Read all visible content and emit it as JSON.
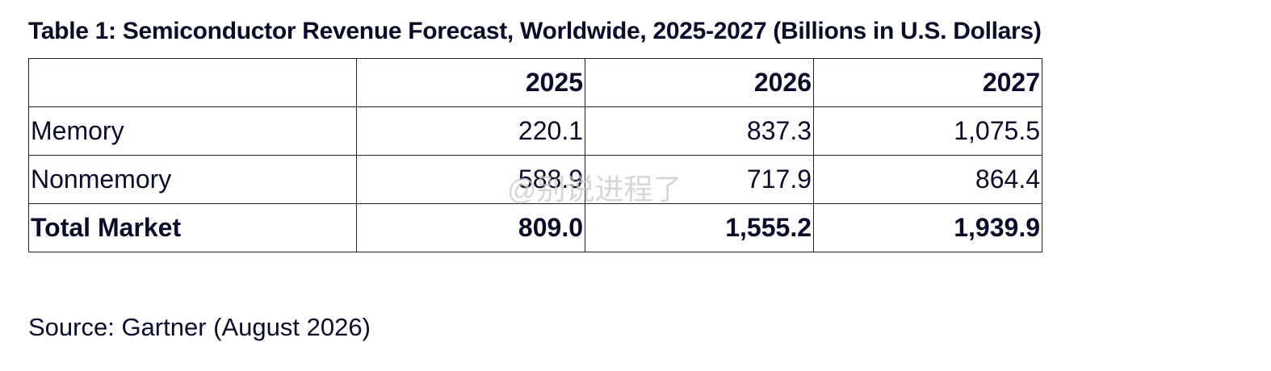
{
  "title": "Table 1: Semiconductor Revenue Forecast, Worldwide, 2025-2027 (Billions in U.S. Dollars)",
  "table": {
    "header": [
      "2025",
      "2026",
      "2027"
    ],
    "rows": [
      {
        "label": "Memory",
        "cells": [
          "220.1",
          "837.3",
          "1,075.5"
        ]
      },
      {
        "label": "Nonmemory",
        "cells": [
          "588.9",
          "717.9",
          "864.4"
        ]
      },
      {
        "label": "Total Market",
        "cells": [
          "809.0",
          "1,555.2",
          "1,939.9"
        ]
      }
    ]
  },
  "source": "Source: Gartner (August 2026)",
  "watermark": "@别说进程了"
}
